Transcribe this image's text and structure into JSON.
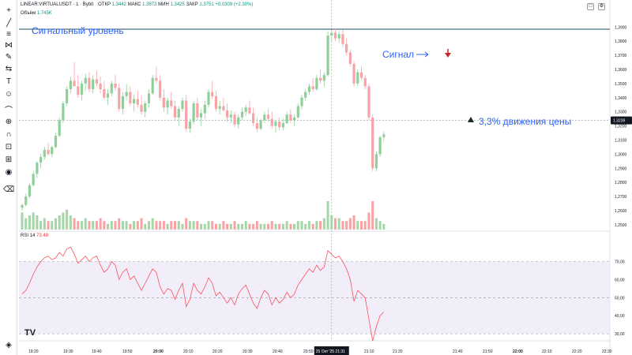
{
  "header": {
    "symbol": "LINEAR:VIRTUALUSDT · 1 · Bybit",
    "open_label": "ОТКР",
    "open_value": "1.3442",
    "high_label": "МАКС",
    "high_value": "1.3873",
    "low_label": "МИН",
    "low_value": "1.3425",
    "close_label": "ЗАКР",
    "close_value": "1.3751",
    "change_value": "+0.0309 (+2.30%)"
  },
  "volume_label": "Объём",
  "volume_value": "1.745K",
  "rsi_label": "RSI 14",
  "rsi_value": "73.48",
  "annotations": {
    "signal_level": "Сигнальный уровень",
    "signal": "Сигнал",
    "move": "3,3% движения цены"
  },
  "price_badge": "1.3239",
  "time_badge": "25 Окт '25   21:31",
  "logo_text": "TV",
  "colors": {
    "up": "#089981",
    "down": "#f23645",
    "up_volume": "#a5d6a7",
    "down_volume": "#faa1a4",
    "rsi": "#f7525f",
    "rsi_band": "#ede7f6",
    "signal_line": "#1e4d63",
    "annotation": "#2962ff"
  },
  "toolbar_icons": [
    "crosshair-icon",
    "trend-line-icon",
    "horizontal-lines-icon",
    "pitchfork-icon",
    "brush-icon",
    "fib-icon",
    "text-icon",
    "emoji-icon",
    "ruler-icon",
    "zoom-icon",
    "magnet-icon",
    "lock-drawings-icon",
    "lock-icon",
    "eye-icon",
    "trash-icon",
    "layers-icon"
  ],
  "chart_data": [
    {
      "type": "candlestick",
      "title": "LINEAR:VIRTUALUSDT · 1 · Bybit",
      "y_ticks": [
        "1,3900",
        "1,3800",
        "1,3700",
        "1,3600",
        "1,3500",
        "1,3400",
        "1,3300",
        "1,3200",
        "1,3100",
        "1,3000",
        "1,2900",
        "1,2800",
        "1,2700",
        "1,2600",
        "1,2500"
      ],
      "x_ticks": [
        "19:20",
        "19:30",
        "19:40",
        "19:50",
        "20:00",
        "20:10",
        "20:20",
        "20:30",
        "20:40",
        "20:50",
        "21:00",
        "21:10",
        "21:20",
        "21:40",
        "21:50",
        "22:00",
        "22:10",
        "22:20",
        "22:30"
      ],
      "ylim": [
        1.246,
        1.398
      ],
      "signal_level": 1.3885,
      "current_price": 1.3239,
      "candles": [
        [
          1.262,
          1.265,
          1.26,
          1.264
        ],
        [
          1.264,
          1.272,
          1.263,
          1.27
        ],
        [
          1.27,
          1.279,
          1.269,
          1.278
        ],
        [
          1.278,
          1.288,
          1.277,
          1.286
        ],
        [
          1.286,
          1.295,
          1.283,
          1.294
        ],
        [
          1.294,
          1.3,
          1.29,
          1.298
        ],
        [
          1.298,
          1.305,
          1.296,
          1.303
        ],
        [
          1.303,
          1.308,
          1.299,
          1.3
        ],
        [
          1.3,
          1.306,
          1.298,
          1.305
        ],
        [
          1.305,
          1.315,
          1.304,
          1.313
        ],
        [
          1.313,
          1.326,
          1.312,
          1.324
        ],
        [
          1.324,
          1.338,
          1.322,
          1.336
        ],
        [
          1.336,
          1.348,
          1.334,
          1.346
        ],
        [
          1.346,
          1.355,
          1.343,
          1.352
        ],
        [
          1.352,
          1.365,
          1.348,
          1.348
        ],
        [
          1.348,
          1.356,
          1.34,
          1.342
        ],
        [
          1.342,
          1.352,
          1.338,
          1.35
        ],
        [
          1.35,
          1.357,
          1.345,
          1.354
        ],
        [
          1.354,
          1.358,
          1.344,
          1.346
        ],
        [
          1.346,
          1.356,
          1.343,
          1.353
        ],
        [
          1.353,
          1.359,
          1.348,
          1.35
        ],
        [
          1.35,
          1.355,
          1.343,
          1.346
        ],
        [
          1.346,
          1.352,
          1.339,
          1.34
        ],
        [
          1.34,
          1.346,
          1.335,
          1.343
        ],
        [
          1.343,
          1.352,
          1.341,
          1.35
        ],
        [
          1.35,
          1.356,
          1.345,
          1.347
        ],
        [
          1.347,
          1.35,
          1.33,
          1.332
        ],
        [
          1.332,
          1.344,
          1.328,
          1.341
        ],
        [
          1.341,
          1.35,
          1.338,
          1.344
        ],
        [
          1.344,
          1.348,
          1.334,
          1.336
        ],
        [
          1.336,
          1.342,
          1.33,
          1.339
        ],
        [
          1.339,
          1.345,
          1.333,
          1.335
        ],
        [
          1.335,
          1.342,
          1.328,
          1.33
        ],
        [
          1.33,
          1.338,
          1.326,
          1.336
        ],
        [
          1.336,
          1.346,
          1.333,
          1.343
        ],
        [
          1.343,
          1.356,
          1.342,
          1.354
        ],
        [
          1.354,
          1.362,
          1.35,
          1.352
        ],
        [
          1.352,
          1.356,
          1.338,
          1.34
        ],
        [
          1.34,
          1.346,
          1.33,
          1.333
        ],
        [
          1.333,
          1.34,
          1.328,
          1.338
        ],
        [
          1.338,
          1.344,
          1.332,
          1.334
        ],
        [
          1.334,
          1.338,
          1.324,
          1.326
        ],
        [
          1.326,
          1.334,
          1.32,
          1.332
        ],
        [
          1.332,
          1.34,
          1.33,
          1.338
        ],
        [
          1.338,
          1.342,
          1.316,
          1.318
        ],
        [
          1.318,
          1.325,
          1.315,
          1.323
        ],
        [
          1.323,
          1.338,
          1.321,
          1.336
        ],
        [
          1.336,
          1.34,
          1.324,
          1.326
        ],
        [
          1.326,
          1.332,
          1.32,
          1.329
        ],
        [
          1.329,
          1.338,
          1.325,
          1.335
        ],
        [
          1.335,
          1.346,
          1.333,
          1.344
        ],
        [
          1.344,
          1.352,
          1.339,
          1.341
        ],
        [
          1.341,
          1.345,
          1.33,
          1.332
        ],
        [
          1.332,
          1.338,
          1.328,
          1.334
        ],
        [
          1.334,
          1.34,
          1.33,
          1.331
        ],
        [
          1.331,
          1.336,
          1.323,
          1.326
        ],
        [
          1.326,
          1.331,
          1.322,
          1.328
        ],
        [
          1.328,
          1.33,
          1.319,
          1.321
        ],
        [
          1.321,
          1.328,
          1.318,
          1.326
        ],
        [
          1.326,
          1.333,
          1.324,
          1.33
        ],
        [
          1.33,
          1.335,
          1.327,
          1.333
        ],
        [
          1.333,
          1.338,
          1.328,
          1.329
        ],
        [
          1.329,
          1.333,
          1.32,
          1.322
        ],
        [
          1.322,
          1.326,
          1.316,
          1.318
        ],
        [
          1.318,
          1.325,
          1.317,
          1.324
        ],
        [
          1.324,
          1.33,
          1.322,
          1.328
        ],
        [
          1.328,
          1.332,
          1.323,
          1.325
        ],
        [
          1.325,
          1.33,
          1.318,
          1.32
        ],
        [
          1.32,
          1.324,
          1.315,
          1.323
        ],
        [
          1.323,
          1.326,
          1.317,
          1.319
        ],
        [
          1.319,
          1.325,
          1.317,
          1.322
        ],
        [
          1.322,
          1.33,
          1.321,
          1.328
        ],
        [
          1.328,
          1.332,
          1.322,
          1.324
        ],
        [
          1.324,
          1.328,
          1.32,
          1.326
        ],
        [
          1.326,
          1.336,
          1.325,
          1.334
        ],
        [
          1.334,
          1.342,
          1.332,
          1.34
        ],
        [
          1.34,
          1.346,
          1.338,
          1.344
        ],
        [
          1.344,
          1.35,
          1.342,
          1.348
        ],
        [
          1.348,
          1.354,
          1.344,
          1.346
        ],
        [
          1.346,
          1.356,
          1.345,
          1.354
        ],
        [
          1.354,
          1.36,
          1.35,
          1.352
        ],
        [
          1.352,
          1.358,
          1.348,
          1.356
        ],
        [
          1.356,
          1.387,
          1.355,
          1.384
        ],
        [
          1.384,
          1.388,
          1.38,
          1.386
        ],
        [
          1.386,
          1.389,
          1.38,
          1.382
        ],
        [
          1.382,
          1.387,
          1.379,
          1.385
        ],
        [
          1.385,
          1.388,
          1.376,
          1.378
        ],
        [
          1.378,
          1.382,
          1.37,
          1.372
        ],
        [
          1.372,
          1.374,
          1.362,
          1.364
        ],
        [
          1.364,
          1.366,
          1.348,
          1.35
        ],
        [
          1.35,
          1.36,
          1.348,
          1.358
        ],
        [
          1.358,
          1.362,
          1.352,
          1.354
        ],
        [
          1.354,
          1.356,
          1.346,
          1.348
        ],
        [
          1.348,
          1.35,
          1.324,
          1.326
        ],
        [
          1.326,
          1.328,
          1.288,
          1.29
        ],
        [
          1.29,
          1.302,
          1.288,
          1.3
        ],
        [
          1.3,
          1.313,
          1.298,
          1.312
        ],
        [
          1.312,
          1.316,
          1.309,
          1.314
        ]
      ],
      "volume": [
        0.6,
        0.4,
        0.5,
        0.6,
        0.5,
        0.3,
        0.4,
        0.3,
        0.3,
        0.4,
        0.5,
        0.6,
        0.7,
        0.5,
        0.4,
        0.3,
        0.3,
        0.4,
        0.3,
        0.3,
        0.3,
        0.4,
        0.3,
        0.2,
        0.3,
        0.3,
        0.4,
        0.3,
        0.3,
        0.2,
        0.3,
        0.3,
        0.4,
        0.2,
        0.3,
        0.4,
        0.3,
        0.3,
        0.3,
        0.2,
        0.3,
        0.3,
        0.3,
        0.2,
        0.4,
        0.3,
        0.3,
        0.3,
        0.2,
        0.2,
        0.3,
        0.3,
        0.2,
        0.2,
        0.3,
        0.2,
        0.2,
        0.3,
        0.2,
        0.2,
        0.3,
        0.2,
        0.2,
        0.3,
        0.2,
        0.2,
        0.2,
        0.3,
        0.2,
        0.2,
        0.2,
        0.3,
        0.2,
        0.2,
        0.3,
        0.3,
        0.2,
        0.3,
        0.2,
        0.3,
        0.3,
        0.4,
        1.0,
        0.5,
        0.4,
        0.4,
        0.3,
        0.3,
        0.4,
        0.5,
        0.3,
        0.3,
        0.3,
        0.6,
        1.0,
        0.4,
        0.3,
        0.2
      ],
      "rsi": [
        52,
        54,
        58,
        63,
        67,
        70,
        72,
        73,
        71,
        72,
        75,
        73,
        77,
        78,
        74,
        69,
        71,
        73,
        70,
        72,
        73,
        68,
        64,
        66,
        70,
        68,
        60,
        64,
        66,
        60,
        62,
        58,
        54,
        58,
        62,
        66,
        64,
        56,
        52,
        55,
        54,
        49,
        54,
        58,
        45,
        49,
        58,
        54,
        52,
        56,
        61,
        58,
        51,
        53,
        50,
        47,
        50,
        46,
        52,
        55,
        57,
        52,
        47,
        44,
        50,
        54,
        52,
        46,
        50,
        47,
        49,
        53,
        50,
        52,
        57,
        60,
        63,
        66,
        64,
        68,
        65,
        67,
        76,
        74,
        72,
        73,
        70,
        66,
        60,
        48,
        54,
        52,
        50,
        38,
        26,
        34,
        40,
        42
      ],
      "rsi_ylim": [
        27,
        82
      ],
      "rsi_ticks": [
        "70,00",
        "60,00",
        "50,00",
        "40,00",
        "30,00"
      ],
      "rsi_band": [
        30,
        70
      ]
    }
  ]
}
